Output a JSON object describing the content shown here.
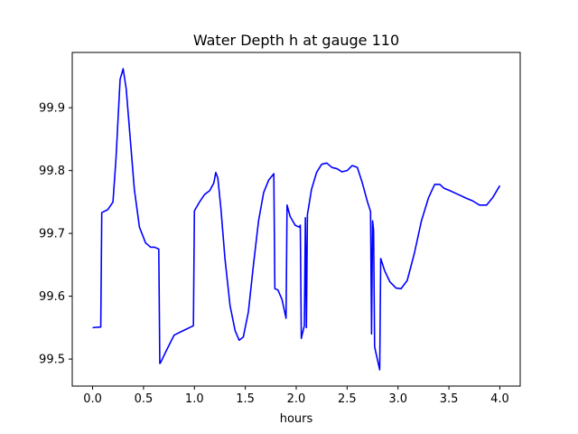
{
  "chart_data": {
    "type": "line",
    "title": "Water Depth h at gauge 110",
    "xlabel": "hours",
    "ylabel": "",
    "xlim": [
      -0.2,
      4.2
    ],
    "ylim": [
      99.457,
      99.988
    ],
    "xticks": [
      0.0,
      0.5,
      1.0,
      1.5,
      2.0,
      2.5,
      3.0,
      3.5,
      4.0
    ],
    "xtick_labels": [
      "0.0",
      "0.5",
      "1.0",
      "1.5",
      "2.0",
      "2.5",
      "3.0",
      "3.5",
      "4.0"
    ],
    "yticks": [
      99.5,
      99.6,
      99.7,
      99.8,
      99.9
    ],
    "ytick_labels": [
      "99.5",
      "99.6",
      "99.7",
      "99.8",
      "99.9"
    ],
    "grid": false,
    "colors": {
      "line": "#0000ff",
      "axes": "#000000",
      "background": "#ffffff"
    },
    "series": [
      {
        "color": "#0000ff",
        "x": [
          0.0,
          0.08,
          0.09,
          0.15,
          0.2,
          0.23,
          0.27,
          0.3,
          0.33,
          0.36,
          0.41,
          0.46,
          0.52,
          0.57,
          0.61,
          0.65,
          0.66,
          0.67,
          0.72,
          0.8,
          0.9,
          0.99,
          1.0,
          1.05,
          1.1,
          1.15,
          1.19,
          1.21,
          1.23,
          1.26,
          1.3,
          1.35,
          1.4,
          1.44,
          1.48,
          1.53,
          1.58,
          1.63,
          1.68,
          1.73,
          1.78,
          1.79,
          1.82,
          1.86,
          1.9,
          1.91,
          1.94,
          1.99,
          2.03,
          2.04,
          2.05,
          2.06,
          2.08,
          2.09,
          2.1,
          2.11,
          2.12,
          2.15,
          2.2,
          2.25,
          2.3,
          2.35,
          2.4,
          2.45,
          2.5,
          2.55,
          2.6,
          2.65,
          2.7,
          2.73,
          2.74,
          2.75,
          2.76,
          2.77,
          2.78,
          2.82,
          2.83,
          2.87,
          2.92,
          2.98,
          3.03,
          3.09,
          3.16,
          3.23,
          3.3,
          3.36,
          3.41,
          3.45,
          3.51,
          3.59,
          3.67,
          3.73,
          3.8,
          3.87,
          3.93,
          4.0
        ],
        "y": [
          99.55,
          99.551,
          99.733,
          99.738,
          99.75,
          99.82,
          99.945,
          99.962,
          99.93,
          99.87,
          99.77,
          99.71,
          99.685,
          99.678,
          99.678,
          99.675,
          99.493,
          99.495,
          99.512,
          99.538,
          99.546,
          99.553,
          99.736,
          99.75,
          99.762,
          99.768,
          99.78,
          99.797,
          99.788,
          99.74,
          99.66,
          99.585,
          99.545,
          99.53,
          99.535,
          99.575,
          99.65,
          99.72,
          99.765,
          99.785,
          99.795,
          99.612,
          99.61,
          99.595,
          99.565,
          99.745,
          99.727,
          99.713,
          99.71,
          99.713,
          99.533,
          99.54,
          99.553,
          99.725,
          99.55,
          99.73,
          99.74,
          99.77,
          99.797,
          99.81,
          99.812,
          99.805,
          99.803,
          99.798,
          99.8,
          99.808,
          99.805,
          99.78,
          99.75,
          99.735,
          99.54,
          99.72,
          99.705,
          99.52,
          99.512,
          99.483,
          99.66,
          99.64,
          99.623,
          99.613,
          99.612,
          99.625,
          99.668,
          99.72,
          99.757,
          99.778,
          99.778,
          99.772,
          99.768,
          99.762,
          99.756,
          99.752,
          99.745,
          99.745,
          99.757,
          99.776
        ]
      }
    ]
  }
}
